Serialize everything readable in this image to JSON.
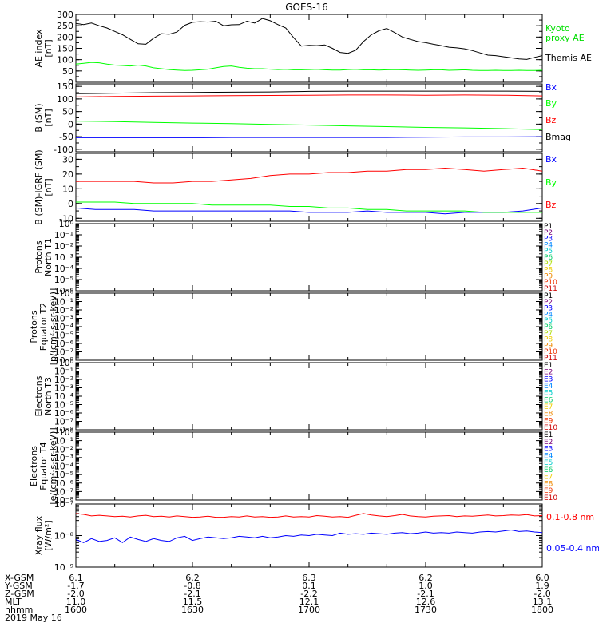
{
  "title": "GOES-16",
  "footer": {
    "row_labels": [
      "X-GSM",
      "Y-GSM",
      "Z-GSM",
      "MLT",
      "hhmm",
      "2019 May 16"
    ],
    "columns": [
      [
        "6.1",
        "-1.7",
        "-2.0",
        "11.0",
        "1600"
      ],
      [
        "6.2",
        "-0.8",
        "-2.1",
        "11.5",
        "1630"
      ],
      [
        "6.3",
        "0.1",
        "-2.2",
        "12.1",
        "1700"
      ],
      [
        "6.2",
        "1.0",
        "-2.1",
        "12.6",
        "1730"
      ],
      [
        "6.0",
        "1.9",
        "-2.0",
        "13.1",
        "1800"
      ]
    ]
  },
  "chart_data": [
    {
      "type": "line",
      "ylabel": [
        "AE index",
        "[nT]"
      ],
      "ylim": [
        0,
        300
      ],
      "yticks": [
        0,
        50,
        100,
        150,
        200,
        250,
        300
      ],
      "ytick_labels": [
        "0",
        "50",
        "100",
        "150",
        "200",
        "250",
        "300"
      ],
      "x": [
        0,
        2,
        4,
        6,
        8,
        10,
        12,
        14,
        16,
        18,
        20,
        22,
        24,
        26,
        28,
        30,
        32,
        34,
        36,
        38,
        40,
        42,
        44,
        46,
        48,
        50,
        52,
        54,
        56,
        58,
        60,
        62,
        64,
        66,
        68,
        70,
        72,
        74,
        76,
        78,
        80,
        82,
        84,
        86,
        88,
        90,
        92,
        94,
        96,
        98,
        100,
        102,
        104,
        106,
        108,
        110,
        112,
        114,
        116,
        118,
        120
      ],
      "series": [
        {
          "name": "Themis AE",
          "color": "#000000",
          "values": [
            260,
            255,
            262,
            250,
            240,
            225,
            210,
            190,
            170,
            168,
            195,
            215,
            212,
            222,
            252,
            265,
            268,
            266,
            270,
            250,
            254,
            255,
            270,
            262,
            282,
            272,
            255,
            240,
            198,
            160,
            163,
            162,
            165,
            150,
            132,
            128,
            142,
            180,
            210,
            228,
            238,
            220,
            200,
            190,
            180,
            175,
            168,
            162,
            155,
            152,
            148,
            140,
            130,
            120,
            118,
            113,
            108,
            103,
            101,
            110,
            118
          ]
        },
        {
          "name": "Kyoto proxy AE",
          "color": "#00ff00",
          "values": [
            80,
            84,
            88,
            86,
            80,
            76,
            74,
            72,
            76,
            72,
            64,
            60,
            56,
            54,
            52,
            53,
            55,
            58,
            64,
            70,
            72,
            66,
            62,
            60,
            60,
            58,
            56,
            57,
            55,
            55,
            56,
            57,
            55,
            54,
            54,
            56,
            57,
            55,
            55,
            54,
            55,
            56,
            55,
            54,
            53,
            54,
            55,
            55,
            53,
            54,
            55,
            53,
            52,
            52,
            53,
            52,
            52,
            53,
            52,
            52,
            53
          ]
        }
      ]
    },
    {
      "type": "line",
      "ylabel": [
        "B (SM)",
        "[nT]"
      ],
      "ylim": [
        -110,
        160
      ],
      "yticks": [
        -100,
        -50,
        0,
        50,
        100,
        150
      ],
      "ytick_labels": [
        "-100",
        "-50",
        "0",
        "50",
        "100",
        "150"
      ],
      "x": [
        0,
        10,
        20,
        30,
        40,
        50,
        60,
        70,
        80,
        90,
        100,
        110,
        120
      ],
      "series": [
        {
          "name": "Bx",
          "color": "#0000ff",
          "values": [
            -54,
            -54,
            -54,
            -54,
            -53,
            -53,
            -53,
            -53,
            -53,
            -52,
            -51,
            -51,
            -50
          ]
        },
        {
          "name": "By",
          "color": "#00ff00",
          "values": [
            12,
            10,
            7,
            4,
            2,
            -1,
            -4,
            -7,
            -10,
            -13,
            -15,
            -18,
            -22
          ]
        },
        {
          "name": "Bz",
          "color": "#ff0000",
          "values": [
            108,
            110,
            111,
            112,
            113,
            114,
            115,
            116,
            116,
            115,
            116,
            115,
            112
          ]
        },
        {
          "name": "Bmag",
          "color": "#000000",
          "values": [
            121,
            123,
            125,
            126,
            127,
            128,
            130,
            131,
            131,
            131,
            131,
            131,
            130
          ]
        }
      ]
    },
    {
      "type": "line",
      "ylabel": [
        "B (SM)-IGRF (SM)",
        "[nT]"
      ],
      "ylim": [
        -12,
        34
      ],
      "yticks": [
        -10,
        0,
        10,
        20,
        30
      ],
      "ytick_labels": [
        "-10",
        "0",
        "10",
        "20",
        "30"
      ],
      "x": [
        0,
        5,
        10,
        15,
        20,
        25,
        30,
        35,
        40,
        45,
        50,
        55,
        60,
        65,
        70,
        75,
        80,
        85,
        90,
        95,
        100,
        105,
        110,
        115,
        120
      ],
      "series": [
        {
          "name": "Bx",
          "color": "#0000ff",
          "values": [
            -3,
            -4,
            -4,
            -4,
            -5,
            -5,
            -5,
            -5,
            -5,
            -5,
            -5,
            -5,
            -6,
            -6,
            -6,
            -5,
            -6,
            -6,
            -6,
            -7,
            -6,
            -6,
            -6,
            -5,
            -3
          ]
        },
        {
          "name": "By",
          "color": "#00ff00",
          "values": [
            1,
            1,
            1,
            0,
            0,
            0,
            0,
            -1,
            -1,
            -1,
            -1,
            -2,
            -2,
            -3,
            -3,
            -4,
            -4,
            -5,
            -5,
            -5,
            -5,
            -6,
            -6,
            -6,
            -6
          ]
        },
        {
          "name": "Bz",
          "color": "#ff0000",
          "values": [
            15,
            15,
            15,
            15,
            14,
            14,
            15,
            15,
            16,
            17,
            19,
            20,
            20,
            21,
            21,
            22,
            22,
            23,
            23,
            24,
            23,
            22,
            23,
            24,
            22
          ]
        }
      ]
    },
    {
      "type": "line",
      "ylabel": [
        "Protons",
        "North T1"
      ],
      "yscale": "log",
      "ylim": [
        1e-06,
        1
      ],
      "ytick_labels": [
        "10⁻⁶",
        "10⁻⁵",
        "10⁻⁴",
        "10⁻³",
        "10⁻²",
        "10⁻¹",
        "10⁰"
      ],
      "series": [],
      "legend": [
        {
          "name": "P1",
          "color": "#000000"
        },
        {
          "name": "P2",
          "color": "#7a007a"
        },
        {
          "name": "P3",
          "color": "#0000ff"
        },
        {
          "name": "P4",
          "color": "#0088ff"
        },
        {
          "name": "P5",
          "color": "#00cccc"
        },
        {
          "name": "P6",
          "color": "#00cc66"
        },
        {
          "name": "P7",
          "color": "#aadd00"
        },
        {
          "name": "P8",
          "color": "#eecc00"
        },
        {
          "name": "P9",
          "color": "#ee8800"
        },
        {
          "name": "P10",
          "color": "#ee3300"
        },
        {
          "name": "P11",
          "color": "#cc0000"
        }
      ]
    },
    {
      "type": "line",
      "ylabel": [
        "Protons",
        "Equator T2",
        "[p/(cm²-s-sr-keV)]"
      ],
      "yscale": "log",
      "ylim": [
        1e-08,
        1
      ],
      "ytick_labels": [
        "10⁻⁸",
        "10⁻⁷",
        "10⁻⁶",
        "10⁻⁵",
        "10⁻⁴",
        "10⁻³",
        "10⁻²",
        "10⁻¹",
        "10⁰"
      ],
      "series": [],
      "legend": [
        {
          "name": "P1",
          "color": "#000000"
        },
        {
          "name": "P2",
          "color": "#7a007a"
        },
        {
          "name": "P3",
          "color": "#0000ff"
        },
        {
          "name": "P4",
          "color": "#0088ff"
        },
        {
          "name": "P5",
          "color": "#00cccc"
        },
        {
          "name": "P6",
          "color": "#00cc66"
        },
        {
          "name": "P7",
          "color": "#aadd00"
        },
        {
          "name": "P8",
          "color": "#eecc00"
        },
        {
          "name": "P9",
          "color": "#ee8800"
        },
        {
          "name": "P10",
          "color": "#ee3300"
        },
        {
          "name": "P11",
          "color": "#cc0000"
        }
      ]
    },
    {
      "type": "line",
      "ylabel": [
        "Electrons",
        "North T3"
      ],
      "yscale": "log",
      "ylim": [
        1e-08,
        1
      ],
      "ytick_labels": [
        "10⁻⁸",
        "10⁻⁷",
        "10⁻⁶",
        "10⁻⁵",
        "10⁻⁴",
        "10⁻³",
        "10⁻²",
        "10⁻¹",
        "10⁰"
      ],
      "series": [],
      "legend": [
        {
          "name": "E1",
          "color": "#000000"
        },
        {
          "name": "E2",
          "color": "#7a007a"
        },
        {
          "name": "E3",
          "color": "#0000ff"
        },
        {
          "name": "E4",
          "color": "#0088ff"
        },
        {
          "name": "E5",
          "color": "#00cccc"
        },
        {
          "name": "E6",
          "color": "#00cc66"
        },
        {
          "name": "E7",
          "color": "#eecc00"
        },
        {
          "name": "E8",
          "color": "#ee8800"
        },
        {
          "name": "E9",
          "color": "#ee3300"
        },
        {
          "name": "E10",
          "color": "#cc0000"
        }
      ]
    },
    {
      "type": "line",
      "ylabel": [
        "Electrons",
        "Equator T4",
        "[e/(cm²-s-sr-keV)]"
      ],
      "yscale": "log",
      "ylim": [
        1e-08,
        1
      ],
      "ytick_labels": [
        "10⁻⁸",
        "10⁻⁷",
        "10⁻⁶",
        "10⁻⁵",
        "10⁻⁴",
        "10⁻³",
        "10⁻²",
        "10⁻¹",
        "10⁰"
      ],
      "series": [],
      "legend": [
        {
          "name": "E1",
          "color": "#000000"
        },
        {
          "name": "E2",
          "color": "#7a007a"
        },
        {
          "name": "E3",
          "color": "#0000ff"
        },
        {
          "name": "E4",
          "color": "#0088ff"
        },
        {
          "name": "E5",
          "color": "#00cccc"
        },
        {
          "name": "E6",
          "color": "#00cc66"
        },
        {
          "name": "E7",
          "color": "#eecc00"
        },
        {
          "name": "E8",
          "color": "#ee8800"
        },
        {
          "name": "E9",
          "color": "#ee3300"
        },
        {
          "name": "E10",
          "color": "#cc0000"
        }
      ]
    },
    {
      "type": "line",
      "ylabel": [
        "Xray flux",
        "[W/m²]"
      ],
      "yscale": "log",
      "ylim": [
        1e-09,
        1e-07
      ],
      "ytick_labels": [
        "10⁻⁹",
        "10⁻⁸",
        "10⁻⁷"
      ],
      "x": [
        0,
        2,
        4,
        6,
        8,
        10,
        12,
        14,
        16,
        18,
        20,
        22,
        24,
        26,
        28,
        30,
        32,
        34,
        36,
        38,
        40,
        42,
        44,
        46,
        48,
        50,
        52,
        54,
        56,
        58,
        60,
        62,
        64,
        66,
        68,
        70,
        72,
        74,
        76,
        78,
        80,
        82,
        84,
        86,
        88,
        90,
        92,
        94,
        96,
        98,
        100,
        102,
        104,
        106,
        108,
        110,
        112,
        114,
        116,
        118,
        120
      ],
      "series": [
        {
          "name": "0.1-0.8 nm",
          "color": "#ff0000",
          "values": [
            5e-08,
            4.7e-08,
            4.2e-08,
            4.4e-08,
            4.2e-08,
            4e-08,
            4.1e-08,
            3.9e-08,
            4.2e-08,
            4.4e-08,
            4e-08,
            4.1e-08,
            3.9e-08,
            4.2e-08,
            4e-08,
            3.8e-08,
            3.9e-08,
            4.1e-08,
            3.8e-08,
            3.8e-08,
            4e-08,
            3.9e-08,
            4.2e-08,
            3.9e-08,
            4e-08,
            3.8e-08,
            3.9e-08,
            4.2e-08,
            3.9e-08,
            4e-08,
            3.9e-08,
            4.3e-08,
            4.1e-08,
            3.9e-08,
            4e-08,
            3.8e-08,
            4.4e-08,
            5e-08,
            4.5e-08,
            4.2e-08,
            4e-08,
            4.3e-08,
            4.7e-08,
            4.2e-08,
            4e-08,
            3.9e-08,
            4.1e-08,
            4.2e-08,
            4.3e-08,
            4e-08,
            4.2e-08,
            4.1e-08,
            4.3e-08,
            4.5e-08,
            4.2e-08,
            4.3e-08,
            4.5e-08,
            4.4e-08,
            4.6e-08,
            4.2e-08,
            4.3e-08
          ]
        },
        {
          "name": "0.05-0.4 nm",
          "color": "#0000ff",
          "values": [
            7.5e-09,
            6e-09,
            8e-09,
            6.5e-09,
            7e-09,
            8.5e-09,
            6e-09,
            9e-09,
            7.5e-09,
            6.5e-09,
            8e-09,
            7e-09,
            6.5e-09,
            8.5e-09,
            9.5e-09,
            7e-09,
            8e-09,
            9e-09,
            8.5e-09,
            8e-09,
            8.5e-09,
            9.5e-09,
            9e-09,
            8.5e-09,
            9.5e-09,
            8.5e-09,
            9e-09,
            1e-08,
            9.5e-09,
            1.05e-08,
            1e-08,
            1.1e-08,
            1.05e-08,
            1e-08,
            1.2e-08,
            1.1e-08,
            1.15e-08,
            1.1e-08,
            1.2e-08,
            1.15e-08,
            1.1e-08,
            1.2e-08,
            1.25e-08,
            1.15e-08,
            1.2e-08,
            1.3e-08,
            1.2e-08,
            1.25e-08,
            1.2e-08,
            1.3e-08,
            1.25e-08,
            1.2e-08,
            1.3e-08,
            1.35e-08,
            1.3e-08,
            1.4e-08,
            1.5e-08,
            1.35e-08,
            1.4e-08,
            1.3e-08,
            1.25e-08
          ]
        }
      ]
    }
  ]
}
